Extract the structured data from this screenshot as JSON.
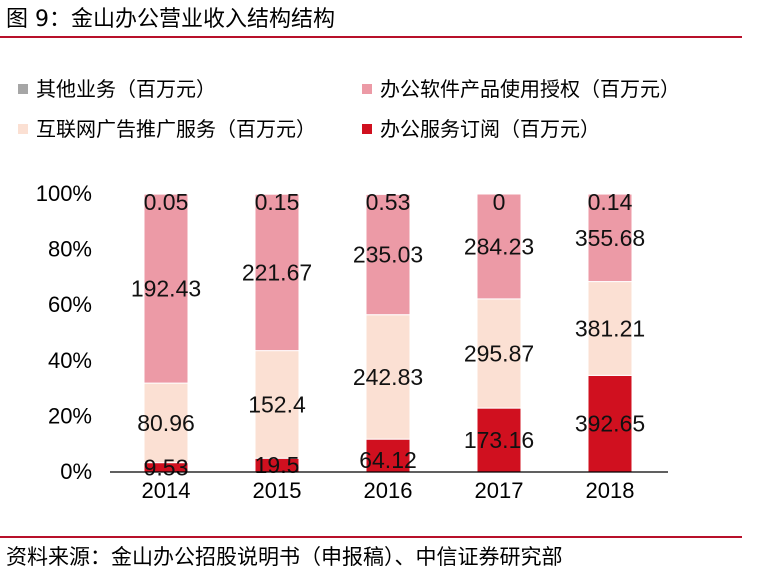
{
  "figure": {
    "title": "图 9：金山办公营业收入结构结构",
    "source": "资料来源：金山办公招股说明书（申报稿）、中信证券研究部"
  },
  "colors": {
    "rule": "#b8102a",
    "other": "#a6a6a6",
    "software": "#ec9aa6",
    "ads": "#fbe0d3",
    "subscription": "#d0101f"
  },
  "chart_data": {
    "type": "bar",
    "stacked": true,
    "normalized": true,
    "categories": [
      "2014",
      "2015",
      "2016",
      "2017",
      "2018"
    ],
    "series": [
      {
        "key": "subscription",
        "name": "办公服务订阅（百万元）",
        "values": [
          9.53,
          19.5,
          64.12,
          173.16,
          392.65
        ],
        "labels": [
          "9.53",
          "19.5",
          "64.12",
          "173.16",
          "392.65"
        ]
      },
      {
        "key": "ads",
        "name": "互联网广告推广服务（百万元）",
        "values": [
          80.96,
          152.4,
          242.83,
          295.87,
          381.21
        ],
        "labels": [
          "80.96",
          "152.4",
          "242.83",
          "295.87",
          "381.21"
        ]
      },
      {
        "key": "software",
        "name": "办公软件产品使用授权（百万元）",
        "values": [
          192.43,
          221.67,
          235.03,
          284.23,
          355.68
        ],
        "labels": [
          "192.43",
          "221.67",
          "235.03",
          "284.23",
          "355.68"
        ]
      },
      {
        "key": "other",
        "name": "其他业务（百万元）",
        "values": [
          0.05,
          0.15,
          0.53,
          0,
          0.14
        ],
        "labels": [
          "0.05",
          "0.15",
          "0.53",
          "0",
          "0.14"
        ]
      }
    ],
    "legend_order": [
      "other",
      "software",
      "ads",
      "subscription"
    ],
    "y_ticks": [
      "0%",
      "20%",
      "40%",
      "60%",
      "80%",
      "100%"
    ],
    "ylim": [
      0,
      100
    ],
    "xlabel": "",
    "ylabel": "",
    "grid": false,
    "legend_position": "top"
  }
}
